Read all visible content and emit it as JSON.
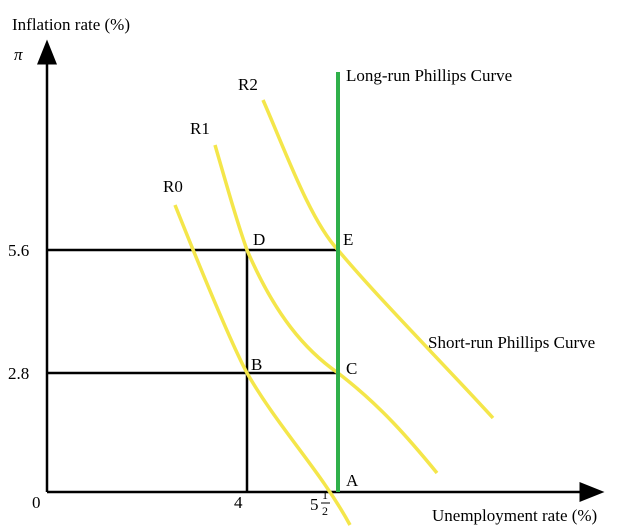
{
  "y_axis": {
    "title": "Inflation rate (%)",
    "symbol": "π",
    "ticks": [
      "5.6",
      "2.8"
    ],
    "origin": "0"
  },
  "x_axis": {
    "title": "Unemployment rate (%)",
    "ticks": [
      "4"
    ],
    "natural_rate": {
      "whole": "5",
      "num": "1",
      "den": "2"
    }
  },
  "curves": [
    {
      "name": "R0"
    },
    {
      "name": "R1"
    },
    {
      "name": "R2"
    }
  ],
  "long_run_label": "Long-run Phillips Curve",
  "short_run_label": "Short-run Phillips Curve",
  "points": [
    "A",
    "B",
    "C",
    "D",
    "E"
  ]
}
